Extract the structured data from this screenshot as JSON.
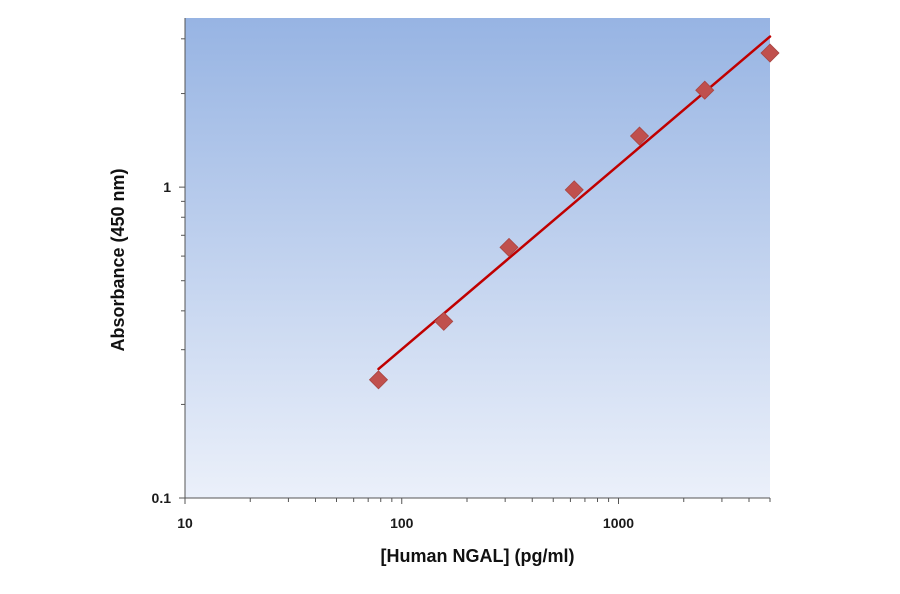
{
  "chart_data": {
    "type": "scatter",
    "title": "",
    "xlabel": "[Human NGAL] (pg/ml)",
    "ylabel": "Absorbance (450 nm)",
    "x_scale": "log",
    "y_scale": "log",
    "xlim": [
      10,
      5000
    ],
    "ylim": [
      0.1,
      3.5
    ],
    "x_tick_labels": [
      "10",
      "100",
      "1000"
    ],
    "x_tick_values": [
      10,
      100,
      1000
    ],
    "y_tick_labels": [
      "0.1",
      "1"
    ],
    "y_tick_values": [
      0.1,
      1
    ],
    "grid": false,
    "legend": "none",
    "series": [
      {
        "kind": "points",
        "marker": "diamond",
        "color": "#c0504d",
        "x": [
          78.1,
          156.25,
          312.5,
          625,
          1250,
          2500,
          5000
        ],
        "y": [
          0.24,
          0.37,
          0.64,
          0.98,
          1.46,
          2.05,
          2.7
        ]
      },
      {
        "kind": "fit-line",
        "color": "#c00000",
        "x": [
          78.1,
          5000
        ],
        "y": [
          0.26,
          3.05
        ]
      }
    ],
    "colors": {
      "plot_bg_top": "#97b4e3",
      "plot_bg_bottom": "#ebf0fa",
      "marker": "#c0504d",
      "line": "#c00000"
    }
  }
}
